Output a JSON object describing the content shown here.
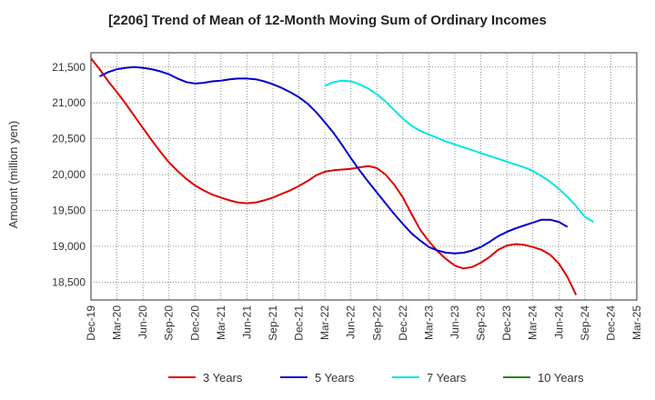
{
  "chart_data": {
    "type": "line",
    "title": "[2206]  Trend of Mean of 12-Month Moving Sum of Ordinary Incomes",
    "xlabel": "",
    "ylabel": "Amount (million yen)",
    "ylim": [
      18250,
      21700
    ],
    "yticks": [
      18500,
      19000,
      19500,
      20000,
      20500,
      21000,
      21500
    ],
    "ytick_labels": [
      "18,500",
      "19,000",
      "19,500",
      "20,000",
      "20,500",
      "21,000",
      "21,500"
    ],
    "x_tick_labels": [
      "Dec-19",
      "Mar-20",
      "Jun-20",
      "Sep-20",
      "Dec-20",
      "Mar-21",
      "Jun-21",
      "Sep-21",
      "Dec-21",
      "Mar-22",
      "Jun-22",
      "Sep-22",
      "Dec-22",
      "Mar-23",
      "Jun-23",
      "Sep-23",
      "Dec-23",
      "Mar-24",
      "Jun-24",
      "Sep-24",
      "Dec-24",
      "Mar-25"
    ],
    "grid": true,
    "legend_position": "bottom",
    "series": [
      {
        "name": "3 Years",
        "color": "#dd0000",
        "start_index": 0,
        "values": [
          21620,
          21470,
          21300,
          21150,
          20990,
          20820,
          20650,
          20480,
          20320,
          20170,
          20050,
          19940,
          19850,
          19780,
          19720,
          19680,
          19640,
          19610,
          19600,
          19610,
          19640,
          19680,
          19730,
          19780,
          19840,
          19910,
          19990,
          20040,
          20060,
          20070,
          20080,
          20100,
          20120,
          20090,
          20000,
          19860,
          19680,
          19450,
          19230,
          19070,
          18930,
          18820,
          18730,
          18690,
          18710,
          18770,
          18850,
          18950,
          19010,
          19030,
          19020,
          18990,
          18950,
          18880,
          18760,
          18570,
          18320
        ]
      },
      {
        "name": "5 Years",
        "color": "#0000cc",
        "start_index": 1,
        "values": [
          21370,
          21430,
          21470,
          21490,
          21500,
          21490,
          21470,
          21440,
          21400,
          21340,
          21290,
          21270,
          21280,
          21300,
          21310,
          21330,
          21340,
          21340,
          21330,
          21300,
          21260,
          21210,
          21150,
          21080,
          20990,
          20870,
          20730,
          20580,
          20410,
          20230,
          20060,
          19900,
          19750,
          19600,
          19450,
          19310,
          19180,
          19080,
          18990,
          18940,
          18910,
          18900,
          18910,
          18940,
          18990,
          19060,
          19140,
          19200,
          19250,
          19290,
          19330,
          19370,
          19370,
          19340,
          19270
        ]
      },
      {
        "name": "7 Years",
        "color": "#00e5e5",
        "start_index": 27,
        "values": [
          21240,
          21290,
          21310,
          21300,
          21260,
          21200,
          21120,
          21020,
          20900,
          20780,
          20680,
          20610,
          20560,
          20510,
          20460,
          20420,
          20380,
          20340,
          20300,
          20260,
          20220,
          20180,
          20140,
          20100,
          20050,
          19980,
          19900,
          19800,
          19690,
          19560,
          19410,
          19340
        ]
      },
      {
        "name": "10 Years",
        "color": "#228822",
        "start_index": 0,
        "values": []
      }
    ]
  }
}
